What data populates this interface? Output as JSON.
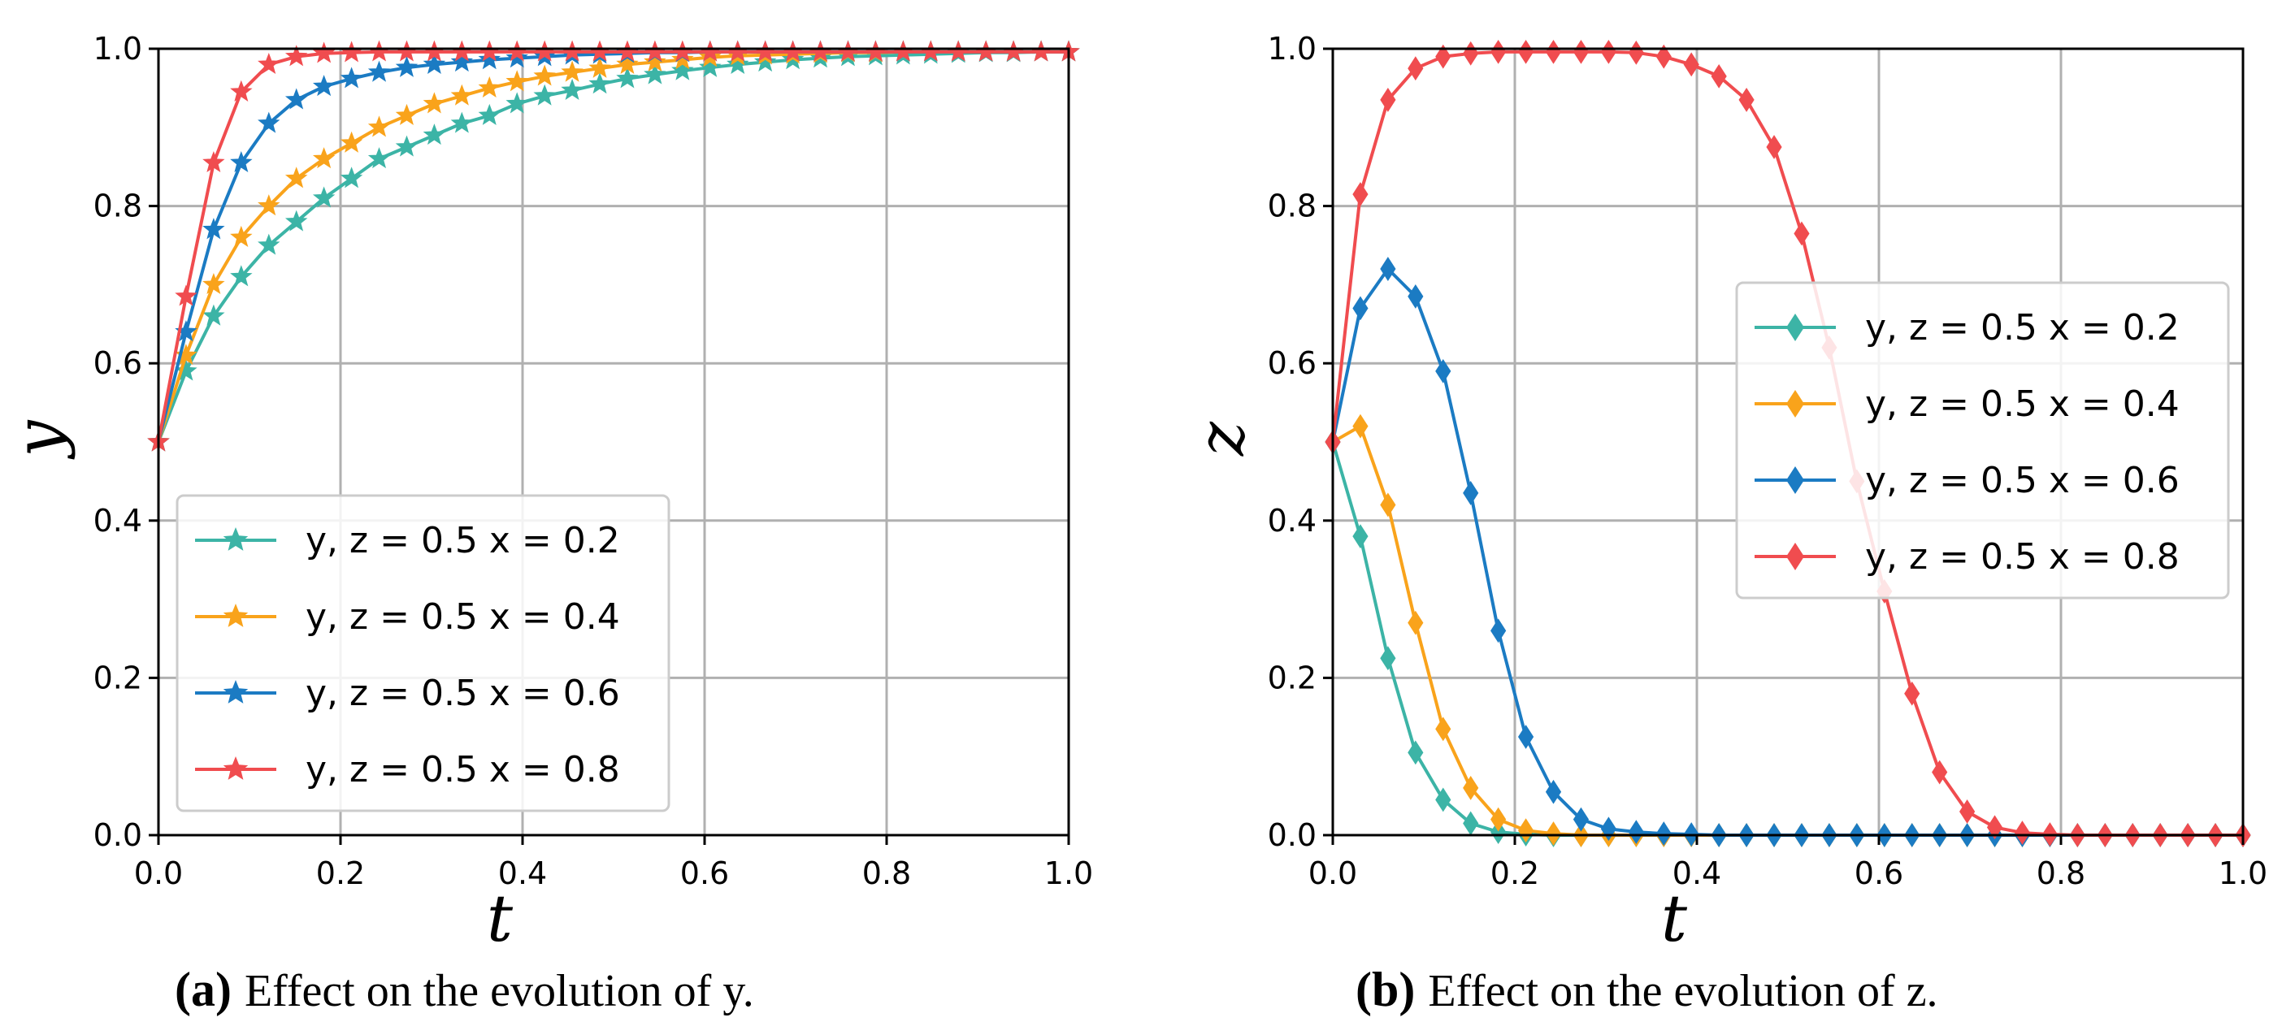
{
  "chart_data": [
    {
      "type": "line",
      "panel": "a",
      "caption_letter": "(a)",
      "caption": "Effect on the evolution of y.",
      "xlabel": "t",
      "ylabel": "y",
      "xlim": [
        0,
        1
      ],
      "ylim": [
        0,
        1
      ],
      "xticks": [
        "0.0",
        "0.2",
        "0.4",
        "0.6",
        "0.8",
        "1.0"
      ],
      "yticks": [
        "0.0",
        "0.2",
        "0.4",
        "0.6",
        "0.8",
        "1.0"
      ],
      "grid": true,
      "legend_position": "lower-left",
      "marker": "star",
      "series": [
        {
          "name": "x02",
          "label": "y, z = 0.5  x = 0.2",
          "color": "#3CB4A6",
          "values": [
            0.5,
            0.59,
            0.66,
            0.71,
            0.75,
            0.78,
            0.81,
            0.835,
            0.86,
            0.875,
            0.89,
            0.905,
            0.915,
            0.93,
            0.94,
            0.947,
            0.955,
            0.962,
            0.967,
            0.972,
            0.976,
            0.98,
            0.983,
            0.986,
            0.988,
            0.99,
            0.991,
            0.992,
            0.993,
            0.994,
            0.995,
            0.995,
            0.996,
            0.996
          ]
        },
        {
          "name": "x04",
          "label": "y, z = 0.5  x = 0.4",
          "color": "#F9A31B",
          "values": [
            0.5,
            0.61,
            0.7,
            0.76,
            0.8,
            0.835,
            0.86,
            0.88,
            0.9,
            0.915,
            0.93,
            0.94,
            0.95,
            0.958,
            0.965,
            0.97,
            0.975,
            0.98,
            0.983,
            0.986,
            0.989,
            0.991,
            0.992,
            0.993,
            0.994,
            0.995,
            0.995,
            0.996,
            0.996,
            0.996,
            0.996,
            0.996,
            0.996,
            0.996
          ]
        },
        {
          "name": "x06",
          "label": "y, z = 0.5  x = 0.6",
          "color": "#1B7BC3",
          "values": [
            0.5,
            0.64,
            0.77,
            0.855,
            0.905,
            0.935,
            0.952,
            0.962,
            0.97,
            0.976,
            0.98,
            0.983,
            0.986,
            0.988,
            0.99,
            0.992,
            0.993,
            0.994,
            0.995,
            0.995,
            0.996,
            0.996,
            0.996,
            0.996,
            0.996,
            0.996,
            0.996,
            0.996,
            0.996,
            0.996,
            0.996,
            0.996,
            0.996,
            0.996
          ]
        },
        {
          "name": "x08",
          "label": "y, z = 0.5  x = 0.8",
          "color": "#F04C4F",
          "values": [
            0.5,
            0.685,
            0.855,
            0.945,
            0.98,
            0.99,
            0.994,
            0.995,
            0.996,
            0.996,
            0.996,
            0.996,
            0.996,
            0.996,
            0.996,
            0.996,
            0.996,
            0.996,
            0.996,
            0.996,
            0.996,
            0.996,
            0.996,
            0.996,
            0.996,
            0.996,
            0.996,
            0.996,
            0.996,
            0.996,
            0.996,
            0.996,
            0.996,
            0.996
          ]
        }
      ]
    },
    {
      "type": "line",
      "panel": "b",
      "caption_letter": "(b)",
      "caption": "Effect on the evolution of z.",
      "xlabel": "t",
      "ylabel": "z",
      "xlim": [
        0,
        1
      ],
      "ylim": [
        0,
        1
      ],
      "xticks": [
        "0.0",
        "0.2",
        "0.4",
        "0.6",
        "0.8",
        "1.0"
      ],
      "yticks": [
        "0.0",
        "0.2",
        "0.4",
        "0.6",
        "0.8",
        "1.0"
      ],
      "grid": true,
      "legend_position": "center-right",
      "marker": "diamond",
      "series": [
        {
          "name": "x02",
          "label": "y, z = 0.5  x = 0.2",
          "color": "#3CB4A6",
          "values": [
            0.5,
            0.38,
            0.225,
            0.105,
            0.045,
            0.015,
            0.004,
            0.001,
            0,
            0,
            0,
            0,
            0,
            0,
            0,
            0,
            0,
            0,
            0,
            0,
            0,
            0,
            0,
            0,
            0,
            0,
            0,
            0,
            0,
            0,
            0,
            0,
            0,
            0
          ]
        },
        {
          "name": "x04",
          "label": "y, z = 0.5  x = 0.4",
          "color": "#F9A31B",
          "values": [
            0.5,
            0.52,
            0.42,
            0.27,
            0.135,
            0.06,
            0.02,
            0.006,
            0.002,
            0,
            0,
            0,
            0,
            0,
            0,
            0,
            0,
            0,
            0,
            0,
            0,
            0,
            0,
            0,
            0,
            0,
            0,
            0,
            0,
            0,
            0,
            0,
            0,
            0
          ]
        },
        {
          "name": "x06",
          "label": "y, z = 0.5  x = 0.6",
          "color": "#1B7BC3",
          "values": [
            0.5,
            0.67,
            0.72,
            0.685,
            0.59,
            0.435,
            0.26,
            0.125,
            0.055,
            0.02,
            0.008,
            0.004,
            0.002,
            0.001,
            0,
            0,
            0,
            0,
            0,
            0,
            0,
            0,
            0,
            0,
            0,
            0,
            0,
            0,
            0,
            0,
            0,
            0,
            0,
            0
          ]
        },
        {
          "name": "x08",
          "label": "y, z = 0.5  x = 0.8",
          "color": "#F04C4F",
          "values": [
            0.5,
            0.815,
            0.935,
            0.975,
            0.99,
            0.994,
            0.996,
            0.996,
            0.996,
            0.996,
            0.996,
            0.995,
            0.99,
            0.98,
            0.965,
            0.935,
            0.875,
            0.765,
            0.62,
            0.45,
            0.31,
            0.18,
            0.08,
            0.03,
            0.01,
            0.003,
            0.001,
            0,
            0,
            0,
            0,
            0,
            0,
            0
          ]
        }
      ]
    }
  ]
}
